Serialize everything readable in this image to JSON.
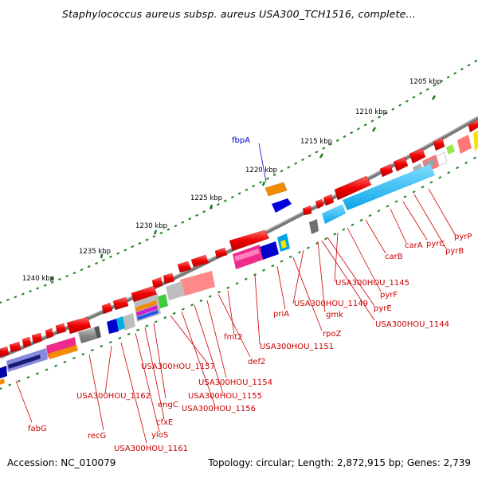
{
  "title": "Staphylococcus aureus subsp. aureus USA300_TCH1516, complete...",
  "footer": {
    "accession": "Accession: NC_010079",
    "stats": "Topology: circular; Length: 2,872,915 bp; Genes: 2,739"
  },
  "scale_labels": [
    "1205 kbp",
    "1210 kbp",
    "1215 kbp",
    "1220 kbp",
    "1225 kbp",
    "1230 kbp",
    "1235 kbp",
    "1240 kbp"
  ],
  "gene_labels_red": [
    "pyrP",
    "pyrB",
    "pyrC",
    "carA",
    "carB",
    "pyrF",
    "USA300HOU_1145",
    "pyrE",
    "USA300HOU_1144",
    "gmk",
    "USA300HOU_1149",
    "rpoZ",
    "priA",
    "USA300HOU_1151",
    "fmt2",
    "def2",
    "USA300HOU_1154",
    "USA300HOU_1155",
    "USA300HOU_1156",
    "USA300HOU_1157",
    "engC",
    "cfxE",
    "yloS",
    "USA300HOU_1161",
    "USA300HOU_1162",
    "recG",
    "fabG"
  ],
  "gene_labels_blue": [
    "fbpA"
  ]
}
